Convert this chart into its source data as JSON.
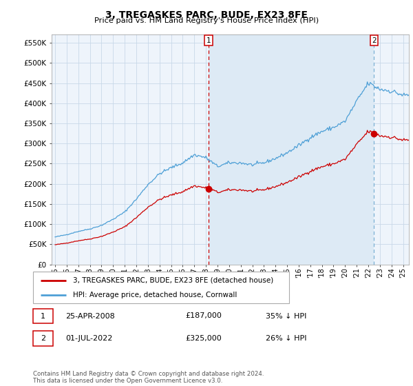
{
  "title": "3, TREGASKES PARC, BUDE, EX23 8FE",
  "subtitle": "Price paid vs. HM Land Registry's House Price Index (HPI)",
  "background_color": "#ffffff",
  "plot_bg_color": "#eef4fb",
  "grid_color": "#c8d8e8",
  "hpi_color": "#4d9fd6",
  "sale_color": "#cc0000",
  "dashed1_color": "#cc0000",
  "dashed2_color": "#7ab0d4",
  "shade_color": "#ddeaf5",
  "sale1_price": 187000,
  "sale2_price": 325000,
  "legend_label1": "3, TREGASKES PARC, BUDE, EX23 8FE (detached house)",
  "legend_label2": "HPI: Average price, detached house, Cornwall",
  "annotation1_date": "25-APR-2008",
  "annotation1_price": "£187,000",
  "annotation1_pct": "35% ↓ HPI",
  "annotation2_date": "01-JUL-2022",
  "annotation2_price": "£325,000",
  "annotation2_pct": "26% ↓ HPI",
  "footer": "Contains HM Land Registry data © Crown copyright and database right 2024.\nThis data is licensed under the Open Government Licence v3.0.",
  "ylim": [
    0,
    570000
  ],
  "yticks": [
    0,
    50000,
    100000,
    150000,
    200000,
    250000,
    300000,
    350000,
    400000,
    450000,
    500000,
    550000
  ],
  "ytick_labels": [
    "£0",
    "£50K",
    "£100K",
    "£150K",
    "£200K",
    "£250K",
    "£300K",
    "£350K",
    "£400K",
    "£450K",
    "£500K",
    "£550K"
  ]
}
